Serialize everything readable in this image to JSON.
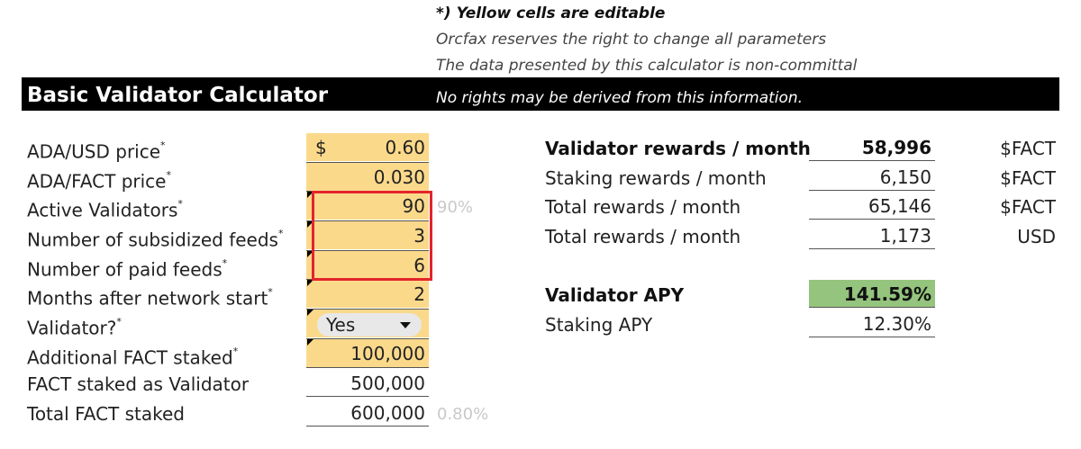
{
  "notes": {
    "editable": "*) Yellow cells are editable",
    "reserves": "Orcfax reserves the right to change all parameters",
    "noncommittal": "The data presented by this calculator is non-committal",
    "no_rights": "No rights may be derived from this information."
  },
  "title": "Basic Validator Calculator",
  "inputs": {
    "ada_usd_price": {
      "label": "ADA/USD price",
      "currency": "$",
      "value": "0.60"
    },
    "ada_fact_price": {
      "label": "ADA/FACT price",
      "value": "0.030"
    },
    "active_validators": {
      "label": "Active Validators",
      "value": "90",
      "side": "90%"
    },
    "subsidized_feeds": {
      "label": "Number of subsidized feeds",
      "value": "3"
    },
    "paid_feeds": {
      "label": "Number of paid feeds",
      "value": "6"
    },
    "months_after_start": {
      "label": "Months after network start",
      "value": "2"
    },
    "validator": {
      "label": "Validator?",
      "value": "Yes"
    },
    "additional_staked": {
      "label": "Additional FACT staked",
      "value": "100,000"
    },
    "staked_as_validator": {
      "label": "FACT staked as Validator",
      "value": "500,000"
    },
    "total_staked": {
      "label": "Total FACT staked",
      "value": "600,000",
      "side": "0.80%"
    }
  },
  "results": {
    "validator_rewards": {
      "label": "Validator rewards / month",
      "value": "58,996",
      "unit": "$FACT"
    },
    "staking_rewards": {
      "label": "Staking rewards / month",
      "value": "6,150",
      "unit": "$FACT"
    },
    "total_rewards_fact": {
      "label": "Total rewards / month",
      "value": "65,146",
      "unit": "$FACT"
    },
    "total_rewards_usd": {
      "label": "Total rewards / month",
      "value": "1,173",
      "unit": "USD"
    },
    "validator_apy": {
      "label": "Validator APY",
      "value": "141.59%"
    },
    "staking_apy": {
      "label": "Staking APY",
      "value": "12.30%"
    }
  },
  "colors": {
    "editable_cell": "#fbd98b",
    "apy_highlight": "#94c47d",
    "header_bar": "#000000",
    "selection_border": "#e3242b"
  }
}
